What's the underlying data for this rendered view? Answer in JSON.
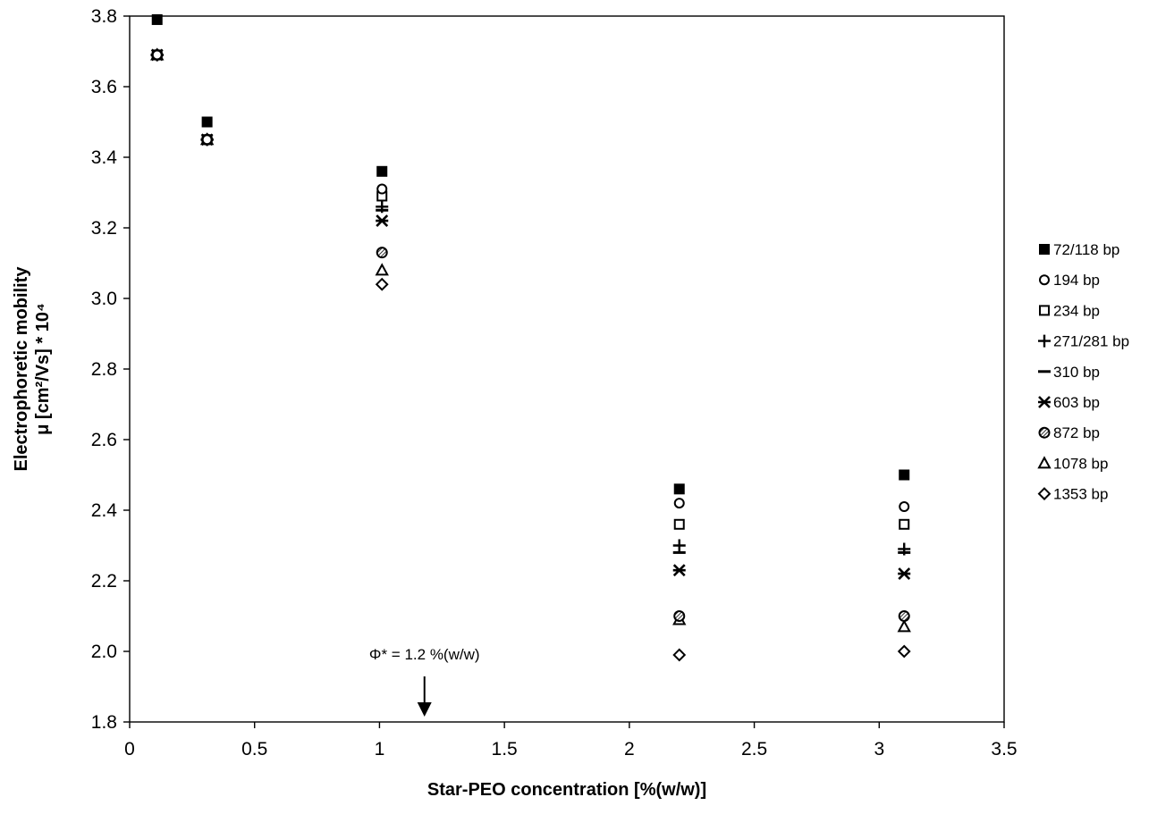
{
  "chart_data": {
    "type": "scatter",
    "xlabel": "Star-PEO concentration [%(w/w)]",
    "ylabel_line1": "Electrophoretic mobility",
    "ylabel_line2": "μ [cm²/Vs] * 10⁴",
    "xlim": [
      0,
      3.5
    ],
    "ylim": [
      1.8,
      3.8
    ],
    "xticks": [
      0,
      0.5,
      1,
      1.5,
      2,
      2.5,
      3,
      3.5
    ],
    "xtick_labels": [
      "0",
      "0.5",
      "1",
      "1.5",
      "2",
      "2.5",
      "3",
      "3.5"
    ],
    "yticks": [
      1.8,
      2.0,
      2.2,
      2.4,
      2.6,
      2.8,
      3.0,
      3.2,
      3.4,
      3.6,
      3.8
    ],
    "ytick_labels": [
      "1.8",
      "2.0",
      "2.2",
      "2.4",
      "2.6",
      "2.8",
      "3.0",
      "3.2",
      "3.4",
      "3.6",
      "3.8"
    ],
    "grid": false,
    "legend_position": "right",
    "x": [
      0.11,
      0.31,
      1.01,
      2.2,
      3.1
    ],
    "series": [
      {
        "name": "72/118 bp",
        "marker": "filled-square",
        "values": [
          3.79,
          3.5,
          3.36,
          2.46,
          2.5
        ]
      },
      {
        "name": "194 bp",
        "marker": "open-circle",
        "values": [
          3.69,
          3.45,
          3.31,
          2.42,
          2.41
        ]
      },
      {
        "name": "234 bp",
        "marker": "open-square",
        "values": [
          3.69,
          3.45,
          3.29,
          2.36,
          2.36
        ]
      },
      {
        "name": "271/281 bp",
        "marker": "plus",
        "values": [
          3.69,
          3.45,
          3.26,
          2.3,
          2.29
        ]
      },
      {
        "name": "310 bp",
        "marker": "dash",
        "values": [
          3.69,
          3.45,
          3.25,
          2.28,
          2.28
        ]
      },
      {
        "name": "603 bp",
        "marker": "asterisk",
        "values": [
          3.69,
          3.45,
          3.22,
          2.23,
          2.22
        ]
      },
      {
        "name": "872 bp",
        "marker": "hatched-circle",
        "values": [
          3.69,
          3.45,
          3.13,
          2.1,
          2.1
        ]
      },
      {
        "name": "1078 bp",
        "marker": "open-triangle",
        "values": [
          3.69,
          3.45,
          3.08,
          2.09,
          2.07
        ]
      },
      {
        "name": "1353 bp",
        "marker": "open-diamond",
        "values": [
          3.69,
          3.45,
          3.04,
          1.99,
          2.0
        ]
      }
    ],
    "annotation": {
      "text": "Φ* = 1.2 %(w/w)",
      "x": 1.18
    }
  },
  "colors": {
    "ink": "#000000",
    "background": "#ffffff"
  }
}
